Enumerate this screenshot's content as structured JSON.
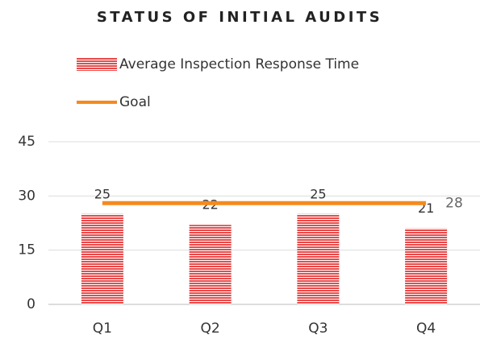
{
  "chart_data": {
    "type": "bar",
    "title": "STATUS OF INITIAL AUDITS",
    "categories": [
      "Q1",
      "Q2",
      "Q3",
      "Q4"
    ],
    "series": [
      {
        "name": "Average Inspection Response Time",
        "color": "#e84a4a",
        "type": "bar",
        "values": [
          25,
          22,
          25,
          21
        ]
      },
      {
        "name": "Goal",
        "color": "#f58a1f",
        "type": "line",
        "values": [
          28,
          28,
          28,
          28
        ]
      }
    ],
    "ylim": [
      0,
      45
    ],
    "yticks": [
      0,
      15,
      30,
      45
    ],
    "grid": true
  }
}
